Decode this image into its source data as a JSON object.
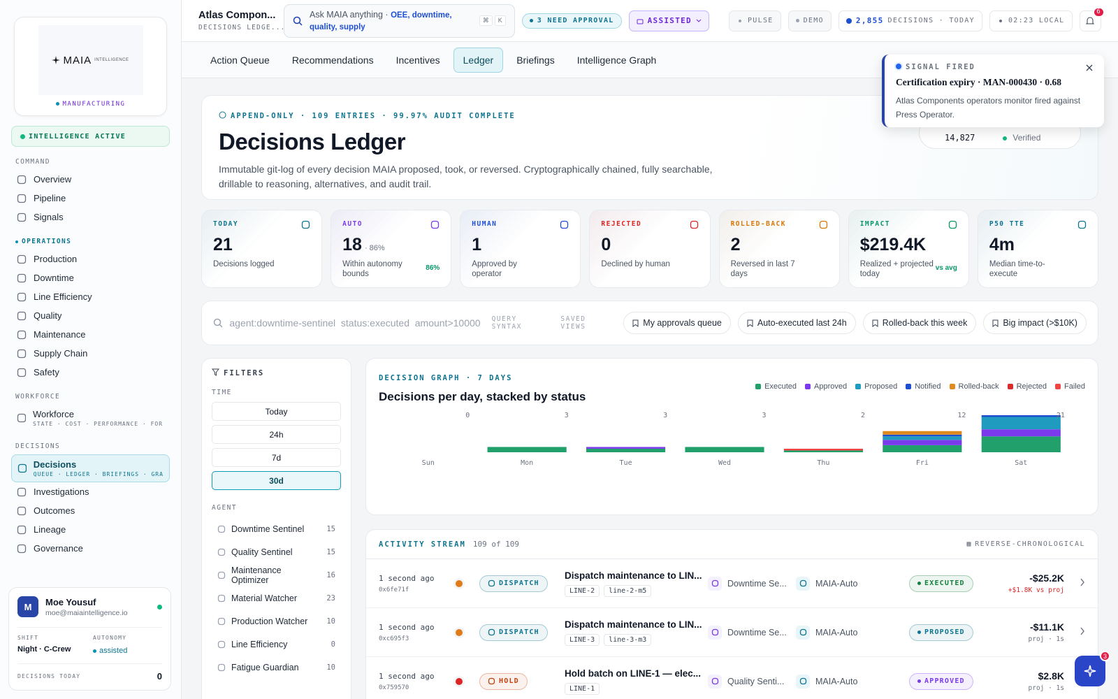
{
  "sidebar": {
    "brand": "MAIA",
    "brand_suffix": "INTELLIGENCE",
    "industry": "MANUFACTURING",
    "status": "INTELLIGENCE ACTIVE",
    "sections": [
      {
        "title": "COMMAND",
        "items": [
          {
            "label": "Overview"
          },
          {
            "label": "Pipeline"
          },
          {
            "label": "Signals"
          }
        ]
      },
      {
        "title": "OPERATIONS",
        "accent": true,
        "items": [
          {
            "label": "Production"
          },
          {
            "label": "Downtime"
          },
          {
            "label": "Line Efficiency"
          },
          {
            "label": "Quality"
          },
          {
            "label": "Maintenance"
          },
          {
            "label": "Supply Chain"
          },
          {
            "label": "Safety"
          }
        ]
      },
      {
        "title": "WORKFORCE",
        "items": [
          {
            "label": "Workforce",
            "sub": "STATE · COST · PERFORMANCE · FOR..."
          }
        ]
      },
      {
        "title": "DECISIONS",
        "items": [
          {
            "label": "Decisions",
            "sub": "QUEUE · LEDGER · BRIEFINGS · GRA...",
            "active": true
          },
          {
            "label": "Investigations"
          },
          {
            "label": "Outcomes"
          },
          {
            "label": "Lineage"
          },
          {
            "label": "Governance"
          }
        ]
      }
    ],
    "user": {
      "initial": "M",
      "name": "Moe Yousuf",
      "email": "moe@maiaintelligence.io",
      "shift_label": "SHIFT",
      "shift": "Night · C-Crew",
      "autonomy_label": "AUTONOMY",
      "autonomy": "assisted",
      "decisions_label": "DECISIONS TODAY",
      "decisions": 0
    }
  },
  "topbar": {
    "title": "Atlas Compon...",
    "subtitle": "DECISIONS LEDGE...",
    "search": {
      "placeholder": "Ask MAIA anything",
      "separator": "·",
      "hint": "OEE, downtime, quality, supply",
      "keys": [
        "⌘",
        "K"
      ]
    },
    "approval": "3 NEED APPROVAL",
    "mode": "ASSISTED",
    "pulse": "PULSE",
    "demo": "DEMO",
    "decisions_count": "2,855",
    "decisions_label": "DECISIONS · TODAY",
    "clock": "02:23 LOCAL",
    "notifications": 6
  },
  "tabs": [
    {
      "label": "Action Queue"
    },
    {
      "label": "Recommendations"
    },
    {
      "label": "Incentives"
    },
    {
      "label": "Ledger",
      "active": true
    },
    {
      "label": "Briefings"
    },
    {
      "label": "Intelligence Graph"
    }
  ],
  "toast": {
    "eyebrow": "SIGNAL FIRED",
    "title": "Certification expiry · MAN-000430 · 0.68",
    "body": "Atlas Components operators monitor fired against Press Operator."
  },
  "ledger": {
    "eyebrow": "APPEND-ONLY · 109 ENTRIES · 99.97% AUDIT COMPLETE",
    "title": "Decisions Ledger",
    "description": "Immutable git-log of every decision MAIA proposed, took, or reversed. Cryptographically chained, fully searchable, drillable to reasoning, alternatives, and audit trail.",
    "chain_count": "14,827",
    "chain_status": "Verified"
  },
  "kpis": [
    {
      "label": "TODAY",
      "value": 21,
      "caption": "Decisions logged",
      "color": "#0e7490"
    },
    {
      "label": "AUTO",
      "value": 18,
      "suffix": "· 86%",
      "caption": "Within autonomy bounds",
      "trend": "86%",
      "color": "#7c3aed"
    },
    {
      "label": "HUMAN",
      "value": 1,
      "caption": "Approved by operator",
      "color": "#1d4ed8"
    },
    {
      "label": "REJECTED",
      "value": 0,
      "caption": "Declined by human",
      "color": "#dc2626"
    },
    {
      "label": "ROLLED-BACK",
      "value": 2,
      "caption": "Reversed in last 7 days",
      "color": "#d97706"
    },
    {
      "label": "IMPACT",
      "value": "$219.4K",
      "caption": "Realized + projected today",
      "trend": "vs avg",
      "color": "#059669"
    },
    {
      "label": "P50 TTE",
      "value": "4m",
      "caption": "Median time-to-execute",
      "color": "#0e7490"
    }
  ],
  "query": {
    "text": "agent:downtime-sentinel  status:executed  amount>10000",
    "syntax": "QUERY SYNTAX",
    "saved": "SAVED VIEWS",
    "views": [
      "My approvals queue",
      "Auto-executed last 24h",
      "Rolled-back this week",
      "Big impact (>$10K)"
    ]
  },
  "filters": {
    "title": "FILTERS",
    "time_label": "TIME",
    "time": [
      {
        "label": "Today"
      },
      {
        "label": "24h"
      },
      {
        "label": "7d"
      },
      {
        "label": "30d",
        "active": true
      }
    ],
    "agent_label": "AGENT",
    "agents": [
      {
        "name": "Downtime Sentinel",
        "count": 15
      },
      {
        "name": "Quality Sentinel",
        "count": 15
      },
      {
        "name": "Maintenance Optimizer",
        "count": 16
      },
      {
        "name": "Material Watcher",
        "count": 23
      },
      {
        "name": "Production Watcher",
        "count": 10
      },
      {
        "name": "Line Efficiency",
        "count": 0
      },
      {
        "name": "Fatigue Guardian",
        "count": 10
      }
    ]
  },
  "chart_data": {
    "type": "bar",
    "stacked": true,
    "eyebrow": "DECISION GRAPH · 7 DAYS",
    "title": "Decisions per day, stacked by status",
    "categories": [
      "Sun",
      "Mon",
      "Tue",
      "Wed",
      "Thu",
      "Fri",
      "Sat"
    ],
    "totals": [
      0,
      3,
      3,
      3,
      2,
      12,
      21
    ],
    "series": [
      {
        "name": "Executed",
        "color": "#22a06b",
        "values": [
          0,
          3,
          2,
          3,
          1,
          4,
          9
        ]
      },
      {
        "name": "Approved",
        "color": "#7c3aed",
        "values": [
          0,
          0,
          1,
          0,
          0,
          3,
          4
        ]
      },
      {
        "name": "Proposed",
        "color": "#1f9bbf",
        "values": [
          0,
          0,
          0,
          0,
          0,
          2,
          7
        ]
      },
      {
        "name": "Notified",
        "color": "#1e4fd1",
        "values": [
          0,
          0,
          0,
          0,
          0,
          1,
          1
        ]
      },
      {
        "name": "Rolled-back",
        "color": "#e08a1e",
        "values": [
          0,
          0,
          0,
          0,
          0,
          2,
          0
        ]
      },
      {
        "name": "Rejected",
        "color": "#d92d2d",
        "values": [
          0,
          0,
          0,
          0,
          0,
          0,
          0
        ]
      },
      {
        "name": "Failed",
        "color": "#ef4444",
        "values": [
          0,
          0,
          0,
          0,
          1,
          0,
          0
        ]
      }
    ]
  },
  "activity": {
    "title": "ACTIVITY STREAM",
    "count": "109 of 109",
    "order": "REVERSE-CHRONOLOGICAL",
    "rows": [
      {
        "time": "1 second ago",
        "hash": "0x6fe71f",
        "dot_color": "#e07b1a",
        "action": "DISPATCH",
        "action_color": "#0e7490",
        "title": "Dispatch maintenance to LIN...",
        "tags": [
          "LINE-2",
          "line-2-m5"
        ],
        "agent": "Downtime Se...",
        "executor": "MAIA-Auto",
        "status": "EXECUTED",
        "status_color": "#15803d",
        "amount": "-$25.2K",
        "note": "+$1.8K vs proj",
        "note_color": "#dc2626"
      },
      {
        "time": "1 second ago",
        "hash": "0xc695f3",
        "dot_color": "#e07b1a",
        "action": "DISPATCH",
        "action_color": "#0e7490",
        "title": "Dispatch maintenance to LIN...",
        "tags": [
          "LINE-3",
          "line-3-m3"
        ],
        "agent": "Downtime Se...",
        "executor": "MAIA-Auto",
        "status": "PROPOSED",
        "status_color": "#0e7490",
        "amount": "-$11.1K",
        "note": "proj · 1s",
        "note_color": "#6b7280"
      },
      {
        "time": "1 second ago",
        "hash": "0x759570",
        "dot_color": "#dc2626",
        "action": "HOLD",
        "action_color": "#c2410c",
        "title": "Hold batch on LINE-1 — elec...",
        "tags": [
          "LINE-1"
        ],
        "agent": "Quality Senti...",
        "executor": "MAIA-Auto",
        "status": "APPROVED",
        "status_color": "#7c3aed",
        "amount": "$2.8K",
        "note": "proj · 1s",
        "note_color": "#6b7280"
      }
    ]
  },
  "assistant_badge": 3
}
